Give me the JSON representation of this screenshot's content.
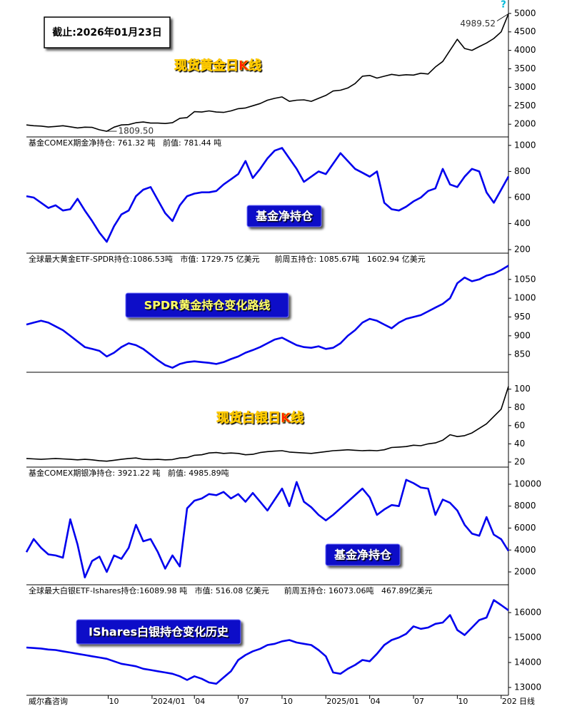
{
  "date_label": "截止:2026年01月23日",
  "help": "?",
  "footer": {
    "source": "威尔鑫咨询",
    "timeframe": "日线"
  },
  "x_axis": {
    "xlim": [
      0,
      66
    ],
    "x": [
      0,
      1,
      2,
      3,
      4,
      5,
      6,
      7,
      8,
      9,
      10,
      11,
      12,
      13,
      14,
      15,
      16,
      17,
      18,
      19,
      20,
      21,
      22,
      23,
      24,
      25,
      26,
      27,
      28,
      29,
      30,
      31,
      32,
      33,
      34,
      35,
      36,
      37,
      38,
      39,
      40,
      41,
      42,
      43,
      44,
      45,
      46,
      47,
      48,
      49,
      50,
      51,
      52,
      53,
      54,
      55,
      56,
      57,
      58,
      59,
      60,
      61,
      62,
      63,
      64,
      65,
      66
    ],
    "xticks": [
      {
        "value": 11.2,
        "label": "10"
      },
      {
        "value": 17.2,
        "label": "2024/01"
      },
      {
        "value": 23,
        "label": "04"
      },
      {
        "value": 29,
        "label": "07"
      },
      {
        "value": 35,
        "label": "10"
      },
      {
        "value": 41,
        "label": "2025/01"
      },
      {
        "value": 47,
        "label": "04"
      },
      {
        "value": 53,
        "label": "07"
      },
      {
        "value": 59,
        "label": "10"
      },
      {
        "value": 65,
        "label": "202"
      }
    ]
  },
  "chart_data": [
    {
      "type": "line",
      "label": "现货黄金日K线",
      "color": "#000000",
      "annotations": [
        "4989.52",
        "1809.50"
      ],
      "values": [
        1980,
        1960,
        1950,
        1925,
        1940,
        1960,
        1930,
        1900,
        1920,
        1915,
        1850,
        1809.5,
        1920,
        1980,
        1990,
        2040,
        2060,
        2030,
        2030,
        2020,
        2040,
        2160,
        2180,
        2340,
        2330,
        2360,
        2330,
        2320,
        2360,
        2420,
        2440,
        2500,
        2560,
        2650,
        2700,
        2740,
        2620,
        2650,
        2660,
        2620,
        2700,
        2780,
        2900,
        2920,
        2980,
        3100,
        3300,
        3320,
        3250,
        3300,
        3350,
        3320,
        3340,
        3330,
        3380,
        3360,
        3550,
        3700,
        4000,
        4300,
        4050,
        4000,
        4100,
        4200,
        4320,
        4500,
        4989.52
      ],
      "ylim": [
        1656,
        5325
      ],
      "yticks": [
        2000,
        2500,
        3000,
        3500,
        4000,
        4500,
        5000
      ]
    },
    {
      "type": "line",
      "header": "基金COMEX期金净持仓: 761.32 吨   前值: 781.44 吨",
      "label": "基金净持仓",
      "color": "#0000ee",
      "values": [
        610,
        600,
        560,
        520,
        540,
        500,
        510,
        590,
        500,
        420,
        330,
        260,
        380,
        470,
        500,
        610,
        660,
        680,
        580,
        480,
        420,
        540,
        610,
        630,
        640,
        640,
        650,
        700,
        740,
        780,
        880,
        750,
        820,
        900,
        960,
        980,
        900,
        820,
        720,
        760,
        800,
        780,
        860,
        940,
        880,
        820,
        790,
        760,
        800,
        560,
        510,
        500,
        530,
        570,
        600,
        650,
        670,
        820,
        700,
        680,
        760,
        820,
        800,
        640,
        560,
        660,
        761.32
      ],
      "ylim": [
        173,
        1054
      ],
      "yticks": [
        200,
        400,
        600,
        800,
        1000
      ]
    },
    {
      "type": "line",
      "header": "全球最大黄金ETF-SPDR持仓:1086.53吨   市值: 1729.75 亿美元      前周五持仓: 1085.67吨   1602.94 亿美元",
      "label": "SPDR黄金持仓变化路线",
      "color": "#0000ee",
      "values": [
        930,
        935,
        940,
        935,
        925,
        915,
        900,
        885,
        870,
        865,
        860,
        845,
        855,
        870,
        880,
        875,
        865,
        850,
        835,
        822,
        815,
        825,
        830,
        832,
        830,
        828,
        825,
        830,
        838,
        845,
        855,
        862,
        870,
        880,
        890,
        895,
        885,
        875,
        870,
        868,
        872,
        865,
        868,
        880,
        900,
        915,
        935,
        945,
        940,
        930,
        920,
        935,
        945,
        950,
        955,
        965,
        975,
        985,
        1000,
        1040,
        1055,
        1045,
        1050,
        1060,
        1065,
        1075,
        1086.53
      ],
      "ylim": [
        803,
        1116
      ],
      "yticks": [
        850,
        900,
        950,
        1000,
        1050
      ]
    },
    {
      "type": "line",
      "label": "现货白银日K线",
      "color": "#000000",
      "values": [
        24,
        23.5,
        23,
        23.5,
        24,
        23.5,
        23,
        22.5,
        23,
        22.5,
        21.5,
        21,
        22,
        23,
        24,
        24.5,
        23,
        22.8,
        23,
        22.5,
        22.8,
        24.5,
        25,
        27.5,
        28,
        30,
        30.5,
        29.5,
        30,
        29.5,
        28,
        28.5,
        30.5,
        31.5,
        32,
        32.5,
        31,
        30.5,
        30,
        29.5,
        30.5,
        31.5,
        32.5,
        33,
        33.5,
        33,
        32.5,
        32.8,
        32.5,
        33.5,
        36,
        36.5,
        37,
        38.5,
        38,
        40,
        41,
        44,
        50,
        48,
        49,
        52,
        57,
        62,
        70,
        78,
        103
      ],
      "ylim": [
        14.5,
        117
      ],
      "yticks": [
        20,
        40,
        60,
        80,
        100
      ]
    },
    {
      "type": "line",
      "header": "基金COMEX期银净持仓: 3921.22 吨   前值: 4985.89吨",
      "label": "基金净持仓",
      "color": "#0000ee",
      "values": [
        3800,
        5000,
        4200,
        3600,
        3500,
        3300,
        6800,
        4500,
        1500,
        3000,
        3400,
        2000,
        3500,
        3200,
        4200,
        6300,
        4800,
        5000,
        3800,
        2300,
        3500,
        2500,
        7800,
        8500,
        8700,
        9100,
        9000,
        9300,
        8700,
        9100,
        8400,
        9200,
        8400,
        7600,
        8600,
        9600,
        8000,
        10200,
        8400,
        7900,
        7200,
        6700,
        7200,
        7800,
        8400,
        9000,
        9600,
        8800,
        7200,
        7700,
        8100,
        8000,
        10400,
        10100,
        9700,
        9600,
        7200,
        8600,
        8300,
        7600,
        6300,
        5500,
        5300,
        7000,
        5400,
        4985.89,
        3921.22
      ],
      "ylim": [
        830,
        11430
      ],
      "yticks": [
        2000,
        4000,
        6000,
        8000,
        10000
      ]
    },
    {
      "type": "line",
      "header": "全球最大白银ETF-Ishares持仓:16089.98 吨   市值: 516.08 亿美元      前周五持仓: 16073.06吨   467.89亿美元",
      "label": "IShares白银持仓变化历史",
      "color": "#0000ee",
      "values": [
        14600,
        14580,
        14560,
        14520,
        14500,
        14450,
        14400,
        14350,
        14300,
        14250,
        14200,
        14150,
        14050,
        13950,
        13900,
        13850,
        13750,
        13700,
        13650,
        13600,
        13550,
        13450,
        13300,
        13450,
        13350,
        13200,
        13150,
        13400,
        13650,
        14100,
        14300,
        14450,
        14550,
        14700,
        14750,
        14850,
        14900,
        14800,
        14750,
        14700,
        14500,
        14250,
        13600,
        13550,
        13750,
        13900,
        14100,
        14050,
        14350,
        14700,
        14900,
        15000,
        15150,
        15450,
        15350,
        15400,
        15550,
        15600,
        15900,
        15300,
        15100,
        15400,
        15700,
        15800,
        16500,
        16300,
        16089.98
      ],
      "ylim": [
        12686,
        17057
      ],
      "yticks": [
        13000,
        14000,
        15000,
        16000
      ]
    }
  ]
}
